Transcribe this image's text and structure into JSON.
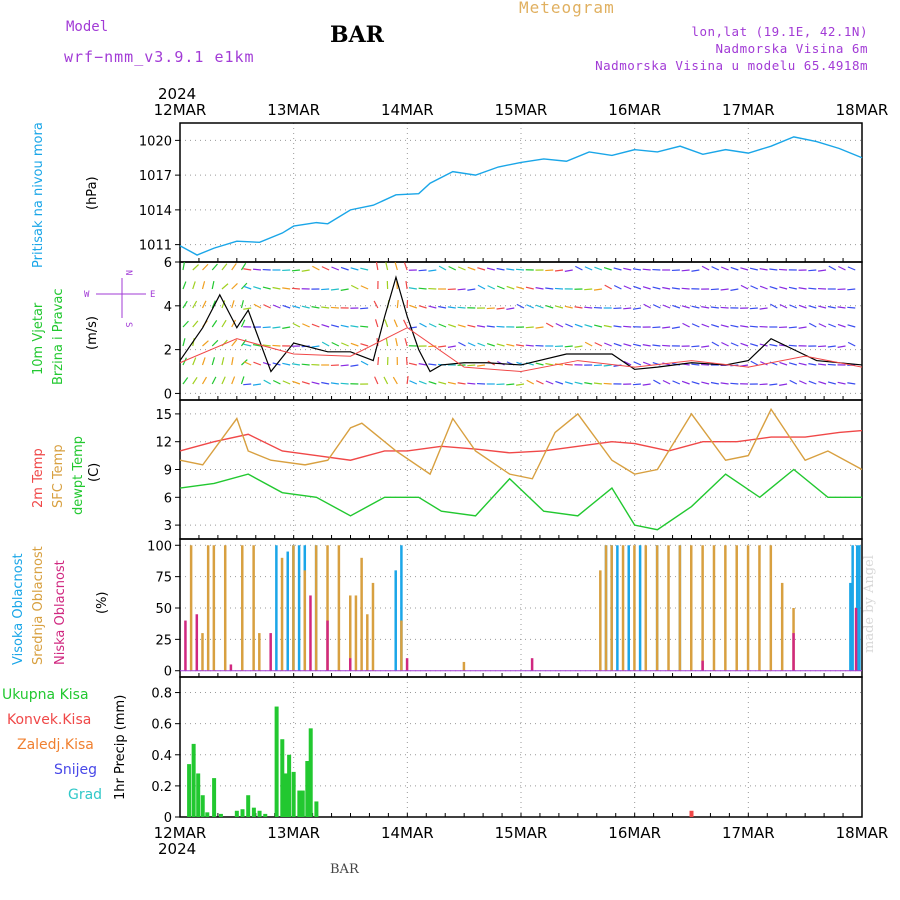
{
  "header": {
    "model_label": "Model",
    "model_name": "wrf−nmm_v3.9.1  e1km",
    "station": "BAR",
    "meteogram": "Meteogram",
    "lonlat": "lon,lat (19.1E, 42.1N)",
    "elevation": "Nadmorska Visina 6m",
    "model_elevation": "Nadmorska Visina u modelu 65.4918m"
  },
  "footer": {
    "station": "BAR",
    "credit": "made by Angel"
  },
  "time_axis": {
    "year_top": "2024",
    "year_bottom": "2024",
    "dates": [
      "12MAR",
      "13MAR",
      "14MAR",
      "15MAR",
      "16MAR",
      "17MAR",
      "18MAR"
    ]
  },
  "colors": {
    "pressure": "#1aa6e8",
    "rh": "#f04848",
    "sfc": "#d8a040",
    "dew": "#22c830",
    "high_cloud": "#1aa6e8",
    "mid_cloud": "#d8a040",
    "low_cloud": "#d02880",
    "precip": "#22c830",
    "conv": "#f04848",
    "frozen": "#f08030",
    "snow": "#4848e8",
    "hail": "#30c8c8",
    "wind_speed": "#000000",
    "gust": "#f04848",
    "purple": "#a23bd6"
  },
  "panels": {
    "pressure": {
      "label_blue": "Pritisak na nivou mora",
      "label_unit": "(hPa)",
      "ticks": [
        "1011",
        "1014",
        "1017",
        "1020"
      ]
    },
    "wind": {
      "label_green": "10m Vjetar",
      "label_green2": "Brzina i Pravac",
      "label_unit": "(m/s)",
      "ticks": [
        "0",
        "2",
        "4",
        "6"
      ],
      "compass_w": "W",
      "compass_e": "E",
      "compass_n": "N",
      "compass_s": "S"
    },
    "temp": {
      "label_rh": "2m Temp",
      "label_sfc": "SFC Temp",
      "label_dew": "dewpt Temp",
      "label_unit": "(C)",
      "ticks": [
        "3",
        "6",
        "9",
        "12",
        "15"
      ]
    },
    "cloud": {
      "label_high": "Visoka Oblacnost",
      "label_mid": "Srednja Oblacnost",
      "label_low": "Niska Oblacnost",
      "label_unit": "(%)",
      "ticks": [
        "0",
        "25",
        "50",
        "75",
        "100"
      ]
    },
    "precip": {
      "leg_total": "Ukupna Kisa",
      "leg_conv": "Konvek.Kisa",
      "leg_frozen": "Zaledj.Kisa",
      "leg_snow": "Snijeg",
      "leg_hail": "Grad",
      "label_unit": "1hr Precip (mm)",
      "ticks": [
        "0",
        "0.2",
        "0.4",
        "0.6",
        "0.8"
      ]
    }
  },
  "chart_data": [
    {
      "type": "line",
      "title": "Pritisak na nivou mora (hPa)",
      "x_unit": "days since 12MAR 00UTC",
      "ylim": [
        1009.5,
        1021.5
      ],
      "series": [
        {
          "name": "Pritisak na nivou mora",
          "x": [
            0,
            0.15,
            0.3,
            0.5,
            0.7,
            0.9,
            1.0,
            1.2,
            1.3,
            1.5,
            1.7,
            1.9,
            2.1,
            2.2,
            2.4,
            2.6,
            2.8,
            3.0,
            3.2,
            3.4,
            3.6,
            3.8,
            4.0,
            4.2,
            4.4,
            4.6,
            4.8,
            5.0,
            5.2,
            5.4,
            5.6,
            5.8,
            6.0
          ],
          "y": [
            1010.9,
            1010.1,
            1010.7,
            1011.3,
            1011.2,
            1012.0,
            1012.6,
            1012.9,
            1012.8,
            1014.0,
            1014.4,
            1015.3,
            1015.4,
            1016.3,
            1017.3,
            1017.0,
            1017.7,
            1018.1,
            1018.4,
            1018.2,
            1019.0,
            1018.7,
            1019.2,
            1019.0,
            1019.5,
            1018.8,
            1019.2,
            1018.9,
            1019.5,
            1020.3,
            1019.9,
            1019.3,
            1018.5
          ]
        }
      ]
    },
    {
      "type": "line",
      "title": "10m Vjetar Brzina i Pravac (m/s)",
      "x_unit": "days since 12MAR 00UTC",
      "ylim": [
        -0.3,
        6.0
      ],
      "series": [
        {
          "name": "speed",
          "x": [
            0,
            0.2,
            0.35,
            0.5,
            0.6,
            0.8,
            1.0,
            1.3,
            1.5,
            1.7,
            1.8,
            1.9,
            2.0,
            2.1,
            2.2,
            2.3,
            2.5,
            2.7,
            3.0,
            3.4,
            3.6,
            3.8,
            4.0,
            4.2,
            4.5,
            4.8,
            5.0,
            5.2,
            5.4,
            5.6,
            6.0
          ],
          "y": [
            1.5,
            3.0,
            4.5,
            3.0,
            3.8,
            1.0,
            2.3,
            1.9,
            1.9,
            1.5,
            3.5,
            5.3,
            3.5,
            2.0,
            1.0,
            1.3,
            1.4,
            1.4,
            1.3,
            1.8,
            1.8,
            1.8,
            1.1,
            1.2,
            1.4,
            1.3,
            1.5,
            2.5,
            2.0,
            1.5,
            1.3
          ]
        },
        {
          "name": "gust",
          "x": [
            0,
            0.5,
            1.0,
            1.5,
            2.0,
            2.5,
            3.0,
            3.5,
            4.0,
            4.5,
            5.0,
            5.5,
            6.0
          ],
          "y": [
            1.4,
            2.5,
            1.8,
            1.7,
            3.0,
            1.2,
            1.0,
            1.5,
            1.2,
            1.5,
            1.2,
            1.7,
            1.2
          ]
        }
      ]
    },
    {
      "type": "line",
      "title": "2m Temp / SFC Temp / dewpt Temp (C)",
      "x_unit": "days since 12MAR 00UTC",
      "ylim": [
        1.5,
        16.5
      ],
      "series": [
        {
          "name": "2m Temp",
          "x": [
            0,
            0.3,
            0.6,
            0.9,
            1.2,
            1.5,
            1.8,
            2.0,
            2.3,
            2.6,
            2.9,
            3.2,
            3.5,
            3.8,
            4.0,
            4.3,
            4.6,
            4.9,
            5.2,
            5.5,
            5.8,
            6.0
          ],
          "y": [
            11.0,
            12.0,
            12.8,
            11.0,
            10.5,
            10.0,
            11.0,
            11.0,
            11.5,
            11.2,
            10.8,
            11.0,
            11.5,
            12.0,
            11.8,
            11.0,
            12.0,
            12.0,
            12.5,
            12.5,
            13.0,
            13.2
          ]
        },
        {
          "name": "SFC Temp",
          "x": [
            0,
            0.2,
            0.5,
            0.6,
            0.8,
            1.1,
            1.3,
            1.5,
            1.6,
            1.9,
            2.2,
            2.4,
            2.6,
            2.9,
            3.1,
            3.3,
            3.5,
            3.8,
            4.0,
            4.2,
            4.5,
            4.8,
            5.0,
            5.2,
            5.5,
            5.7,
            6.0
          ],
          "y": [
            10.0,
            9.5,
            14.5,
            11.0,
            10.0,
            9.5,
            10.0,
            13.5,
            14.0,
            11.0,
            8.5,
            14.5,
            11.0,
            8.5,
            8.0,
            13.0,
            15.0,
            10.0,
            8.5,
            9.0,
            15.0,
            10.0,
            10.5,
            15.5,
            10.0,
            11.0,
            9.0
          ]
        },
        {
          "name": "dewpt Temp",
          "x": [
            0,
            0.3,
            0.6,
            0.9,
            1.2,
            1.5,
            1.8,
            2.1,
            2.3,
            2.6,
            2.9,
            3.2,
            3.5,
            3.8,
            4.0,
            4.2,
            4.5,
            4.8,
            5.1,
            5.4,
            5.7,
            6.0
          ],
          "y": [
            7.0,
            7.5,
            8.5,
            6.5,
            6.0,
            4.0,
            6.0,
            6.0,
            4.5,
            4.0,
            8.0,
            4.5,
            4.0,
            7.0,
            3.0,
            2.5,
            5.0,
            8.5,
            6.0,
            9.0,
            6.0,
            6.0
          ]
        }
      ]
    },
    {
      "type": "bar",
      "title": "Visoka / Srednja / Niska Oblacnost (%)",
      "x_unit": "days since 12MAR 00UTC",
      "ylim": [
        0,
        100
      ],
      "series": [
        {
          "name": "Visoka Oblacnost",
          "x": [
            0.85,
            0.95,
            1.0,
            1.05,
            1.1,
            1.2,
            1.9,
            1.95,
            3.75,
            3.8,
            3.85,
            3.95,
            4.05,
            4.2,
            4.4,
            5.9,
            5.92,
            5.96,
            5.98
          ],
          "y": [
            100,
            95,
            100,
            100,
            100,
            100,
            80,
            100,
            100,
            100,
            100,
            100,
            100,
            100,
            100,
            70,
            100,
            100,
            100
          ]
        },
        {
          "name": "Srednja Oblacnost",
          "x": [
            0.1,
            0.2,
            0.25,
            0.3,
            0.4,
            0.55,
            0.65,
            0.7,
            0.9,
            1.0,
            1.1,
            1.2,
            1.3,
            1.4,
            1.5,
            1.55,
            1.6,
            1.65,
            1.7,
            1.95,
            2.5,
            3.7,
            3.75,
            3.8,
            3.9,
            4.0,
            4.1,
            4.2,
            4.3,
            4.4,
            4.5,
            4.6,
            4.7,
            4.8,
            4.9,
            5.0,
            5.1,
            5.2,
            5.3,
            5.4
          ],
          "y": [
            100,
            30,
            100,
            100,
            100,
            100,
            100,
            30,
            90,
            100,
            80,
            100,
            100,
            100,
            60,
            60,
            90,
            45,
            70,
            40,
            7,
            80,
            100,
            100,
            100,
            100,
            100,
            100,
            100,
            100,
            100,
            100,
            100,
            100,
            100,
            100,
            100,
            100,
            70,
            50
          ]
        },
        {
          "name": "Niska Oblacnost",
          "x": [
            0.05,
            0.15,
            0.45,
            0.8,
            1.15,
            1.3,
            1.5,
            2.0,
            3.1,
            4.6,
            5.4,
            5.95
          ],
          "y": [
            40,
            45,
            5,
            30,
            60,
            40,
            10,
            10,
            10,
            8,
            30,
            50
          ]
        }
      ]
    },
    {
      "type": "bar",
      "title": "1hr Precip (mm)",
      "x_unit": "days since 12MAR 00UTC",
      "ylim": [
        0,
        0.9
      ],
      "series": [
        {
          "name": "Ukupna Kisa",
          "x": [
            0.08,
            0.12,
            0.16,
            0.2,
            0.24,
            0.3,
            0.36,
            0.5,
            0.55,
            0.6,
            0.65,
            0.7,
            0.75,
            0.85,
            0.9,
            0.93,
            0.96,
            1.0,
            1.05,
            1.08,
            1.12,
            1.15,
            1.2
          ],
          "y": [
            0.34,
            0.47,
            0.28,
            0.14,
            0.03,
            0.25,
            0.02,
            0.04,
            0.05,
            0.14,
            0.06,
            0.04,
            0.02,
            0.71,
            0.5,
            0.28,
            0.4,
            0.29,
            0.17,
            0.17,
            0.36,
            0.57,
            0.1
          ]
        },
        {
          "name": "Konvek.Kisa",
          "x": [
            4.5
          ],
          "y": [
            0.04
          ]
        }
      ]
    }
  ]
}
